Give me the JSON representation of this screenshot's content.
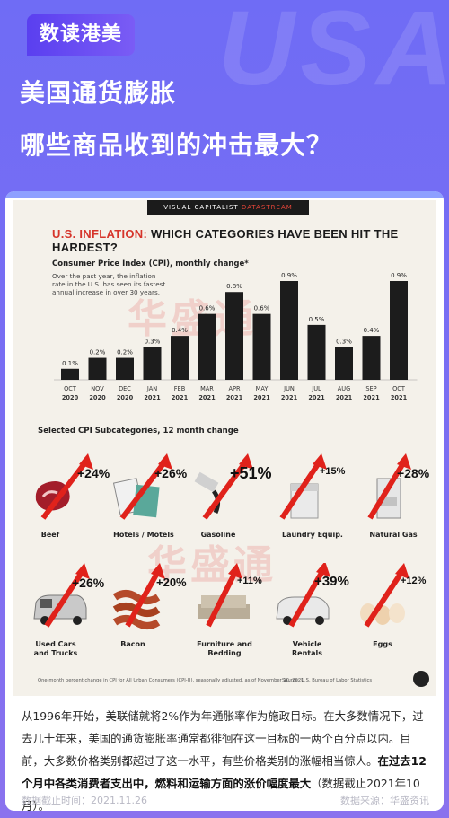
{
  "header": {
    "brand": "数读港美",
    "watermark": "USA",
    "title_line1": "美国通货膨胀",
    "title_line2": "哪些商品收到的冲击最大？"
  },
  "infographic": {
    "band_left": "VISUAL CAPITALIST",
    "band_right": "DATASTREAM",
    "title_red": "U.S. INFLATION:",
    "title_black": " WHICH CATEGORIES HAVE BEEN HIT THE HARDEST?",
    "cpi_label": "Consumer Price Index (CPI), monthly change*",
    "cpi_desc": "Over the past year, the inflation rate in the U.S. has seen its fastest annual increase in over 30 years.",
    "sub_title": "Selected CPI Subcategories, 12 month change",
    "footnote": "One-month percent change in CPI for All Urban Consumers (CPI-U), seasonally adjusted, as of November 10, 2021",
    "source": "Source: U.S. Bureau of Labor Statistics",
    "watermark_text": "华盛通"
  },
  "chart_data": {
    "type": "bar",
    "title": "U.S. INFLATION: WHICH CATEGORIES HAVE BEEN HIT THE HARDEST?",
    "ylabel": "Consumer Price Index (CPI), monthly change*",
    "categories": [
      "OCT 2020",
      "NOV 2020",
      "DEC 2020",
      "JAN 2021",
      "FEB 2021",
      "MAR 2021",
      "APR 2021",
      "MAY 2021",
      "JUN 2021",
      "JUL 2021",
      "AUG 2021",
      "SEP 2021",
      "OCT 2021"
    ],
    "months": [
      "OCT",
      "NOV",
      "DEC",
      "JAN",
      "FEB",
      "MAR",
      "APR",
      "MAY",
      "JUN",
      "JUL",
      "AUG",
      "SEP",
      "OCT"
    ],
    "years": [
      "2020",
      "2020",
      "2020",
      "2021",
      "2021",
      "2021",
      "2021",
      "2021",
      "2021",
      "2021",
      "2021",
      "2021",
      "2021"
    ],
    "values": [
      0.1,
      0.2,
      0.2,
      0.3,
      0.4,
      0.6,
      0.8,
      0.6,
      0.9,
      0.5,
      0.3,
      0.4,
      0.9
    ],
    "labels": [
      "0.1%",
      "0.2%",
      "0.2%",
      "0.3%",
      "0.4%",
      "0.6%",
      "0.8%",
      "0.6%",
      "0.9%",
      "0.5%",
      "0.3%",
      "0.4%",
      "0.9%"
    ],
    "ylim": [
      0,
      0.9
    ],
    "bar_color": "#1c1c1c"
  },
  "categories": [
    {
      "label": "Beef",
      "pct": "+24%",
      "icon": "beef-icon"
    },
    {
      "label": "Hotels / Motels",
      "pct": "+26%",
      "icon": "hotel-icon"
    },
    {
      "label": "Gasoline",
      "pct": "+51%",
      "icon": "gas-pump-icon"
    },
    {
      "label": "Laundry Equip.",
      "pct": "+15%",
      "icon": "washing-machine-icon"
    },
    {
      "label": "Natural Gas",
      "pct": "+28%",
      "icon": "gas-heater-icon"
    },
    {
      "label": "Used Cars and Trucks",
      "pct": "+26%",
      "icon": "van-icon"
    },
    {
      "label": "Bacon",
      "pct": "+20%",
      "icon": "bacon-icon"
    },
    {
      "label": "Furniture and Bedding",
      "pct": "+11%",
      "icon": "sofa-icon"
    },
    {
      "label": "Vehicle Rentals",
      "pct": "+39%",
      "icon": "suv-icon"
    },
    {
      "label": "Eggs",
      "pct": "+12%",
      "icon": "eggs-icon"
    }
  ],
  "article": {
    "text_normal": "从1996年开始，美联储就将2%作为年通胀率作为施政目标。在大多数情况下，过去几十年来，美国的通货膨胀率通常都徘徊在这一目标的一两个百分点以内。目前，大多数价格类别都超过了这一水平，有些价格类别的涨幅相当惊人。",
    "text_bold": "在过去12个月中各类消费者支出中，燃料和运输方面的涨价幅度最大",
    "text_tail": "（数据截止2021年10月）。",
    "date": "数据截止时间：2021.11.26",
    "source": "数据来源：华盛资讯"
  },
  "colors": {
    "accent": "#6f6cf5",
    "arrow_red": "#e0221b",
    "title_red": "#d6352b"
  }
}
